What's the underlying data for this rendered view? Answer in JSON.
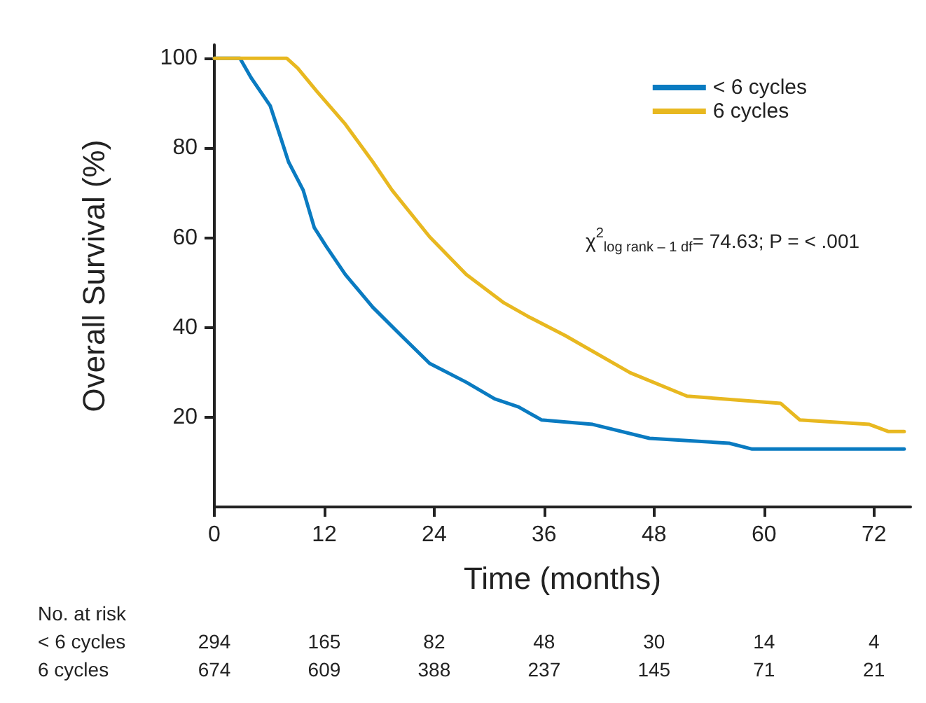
{
  "chart_data": {
    "type": "line",
    "xlabel": "Time (months)",
    "ylabel": "Overall Survival (%)",
    "xlim": [
      0,
      76
    ],
    "xticks": [
      0,
      12,
      24,
      36,
      48,
      60,
      72
    ],
    "ylim": [
      0,
      103
    ],
    "yticks": [
      20,
      40,
      60,
      80,
      100
    ],
    "grid": false,
    "legend": "top right",
    "marker": "none",
    "line_style": "solid",
    "series": [
      {
        "name": "< 6 cycles",
        "color": "#0a7bc1",
        "x": [
          0,
          2.8,
          4.0,
          6.1,
          7.1,
          8.1,
          9.7,
          10.9,
          12.2,
          14.3,
          17.3,
          20.4,
          23.5,
          27.5,
          30.6,
          33.2,
          35.7,
          41.3,
          47.5,
          56.2,
          58.7,
          75.3
        ],
        "values": [
          100,
          100,
          95.7,
          89.4,
          83.2,
          76.9,
          70.6,
          62.3,
          58.1,
          51.8,
          44.5,
          38.2,
          32.0,
          27.8,
          24.1,
          22.3,
          19.4,
          18.4,
          15.3,
          14.2,
          12.9,
          12.9
        ]
      },
      {
        "name": "6 cycles",
        "color": "#e8b820",
        "x": [
          0,
          7.9,
          9.1,
          11.2,
          14.3,
          17.3,
          19.4,
          23.5,
          27.5,
          31.6,
          34.2,
          38.3,
          45.4,
          51.6,
          61.8,
          63.9,
          71.5,
          73.6,
          75.3
        ],
        "values": [
          100,
          100,
          97.8,
          92.6,
          85.3,
          76.9,
          70.6,
          60.2,
          51.8,
          45.5,
          42.5,
          38.2,
          29.9,
          24.7,
          23.1,
          19.4,
          18.4,
          16.8,
          16.8
        ]
      }
    ],
    "annotations": [
      "χ$^{2}$$_{log rank – 1 df}$= 74.63; P = < .001",
      "No. at risk",
      "< 6 cycles",
      "294",
      "165",
      "82",
      "48",
      "30",
      "14",
      "4",
      "6 cycles",
      "674",
      "609",
      "388",
      "237",
      "145",
      "71",
      "21"
    ]
  }
}
